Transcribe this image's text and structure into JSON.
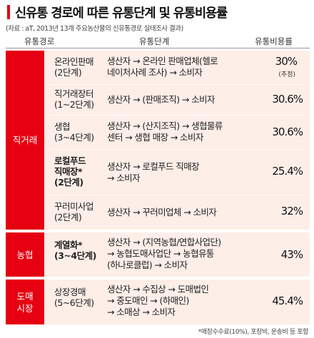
{
  "title": "신유통 경로에 따른 유통단계 및 유통비용률",
  "source": "(자료 : aT, 2013년 13개 주요농산물의 신유통경로 실태조사 결과)",
  "headers": {
    "route": "유통경로",
    "stages": "유통단계",
    "rate": "유통비용률"
  },
  "groups": [
    {
      "label": "직거래"
    },
    {
      "label": "농협"
    },
    {
      "label": "도매\n시장"
    }
  ],
  "rows": [
    {
      "name": "온라인판매\n(2단계)",
      "path": "생산자 → 온라인 판매업체(헬로\n네이처사례 조사) → 소비자",
      "rate": "30%",
      "note": "(추정)"
    },
    {
      "name": "직거래장터\n(1~2단계)",
      "path": "생산자 → (판매조직) → 소비자",
      "rate": "30.6%"
    },
    {
      "name": "생협\n(3~4단계)",
      "path": "생산자 → (산지조직) → 생협물류\n센터 → 생협 매장 → 소비자",
      "rate": "30.6%"
    },
    {
      "name": "로컬푸드\n직매장*\n(2단계)",
      "path": "생산자 → 로컬푸드 직매장\n→ 소비자",
      "rate": "25.4%"
    },
    {
      "name": "꾸러미사업\n(2단계)",
      "path": "생산자 → 꾸러미업체 → 소비자",
      "rate": "32%"
    },
    {
      "name": "계열화*\n(3~4단계)",
      "path": "생산자 → (지역농협/연합사업단)\n→ 농협도매사업단 → 농협유통\n(하나로클럽) → 소비자",
      "rate": "43%"
    },
    {
      "name": "상장경매\n(5~6단계)",
      "path": "생산자 → 수집상 → 도매법인\n→ 중도매인 → (하매인)\n→ 소매상 → 소비자",
      "rate": "45.4%"
    }
  ],
  "footnote": "*매장수수료(10%), 포장비, 운송비 등 포함",
  "colors": {
    "accent": "#e60012",
    "panel": "#fdeee8"
  }
}
